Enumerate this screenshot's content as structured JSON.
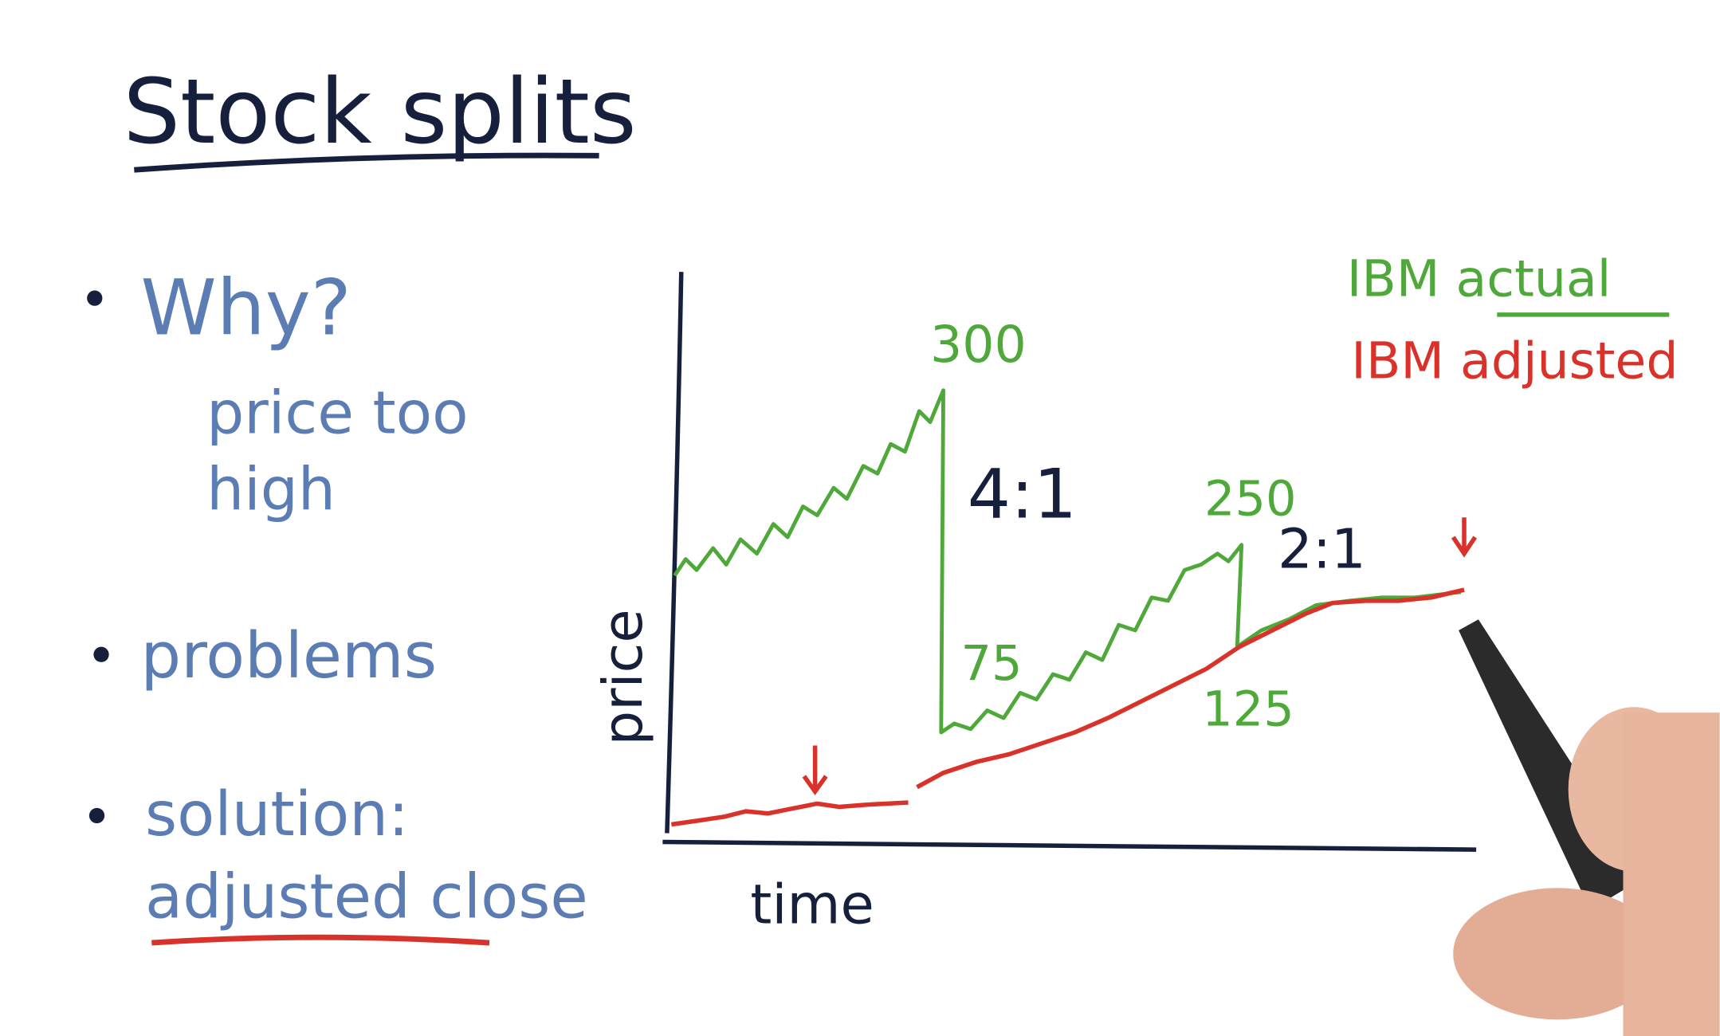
{
  "title": "Stock splits",
  "bullets": [
    {
      "label": "Why?",
      "detail": [
        "price too",
        "high"
      ]
    },
    {
      "label": "problems"
    },
    {
      "label": "solution:",
      "detail": [
        "adjusted close"
      ]
    }
  ],
  "chart": {
    "y_label": "price",
    "x_label": "time",
    "legend": [
      "IBM actual",
      "IBM adjusted"
    ],
    "annotations": [
      "300",
      "4:1",
      "75",
      "250",
      "2:1",
      "125"
    ]
  }
}
